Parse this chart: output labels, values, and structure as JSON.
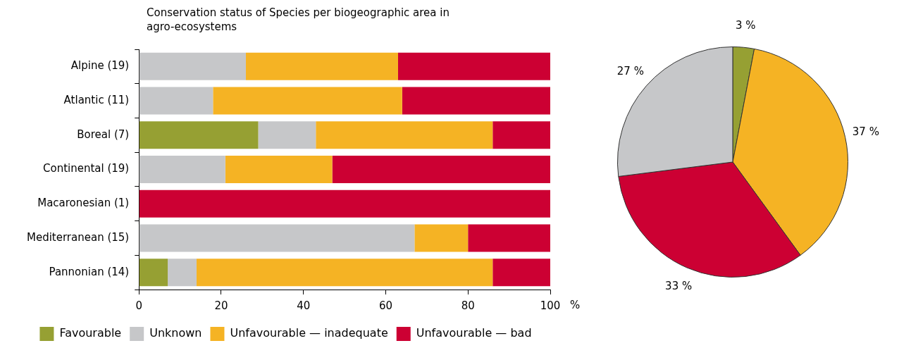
{
  "chart_data": [
    {
      "type": "bar",
      "orientation": "horizontal",
      "stacked": true,
      "title": "Conservation status of Species per biogeographic area in agro-ecosystems",
      "xlabel": "%",
      "legend": "bottom",
      "categories": [
        "Alpine (19)",
        "Atlantic (11)",
        "Boreal (7)",
        "Continental (19)",
        "Macaronesian (1)",
        "Mediterranean (15)",
        "Pannonian (14)"
      ],
      "xlim": [
        0,
        100
      ],
      "xticks": [
        0,
        20,
        40,
        60,
        80,
        100
      ],
      "series": [
        {
          "name": "Favourable",
          "color": "#96a033",
          "values": [
            0,
            0,
            29,
            0,
            0,
            0,
            7
          ]
        },
        {
          "name": "Unknown",
          "color": "#c6c7c9",
          "values": [
            26,
            18,
            14,
            21,
            0,
            67,
            7
          ]
        },
        {
          "name": "Unfavourable — inadequate",
          "color": "#f5b324",
          "values": [
            37,
            46,
            43,
            26,
            0,
            13,
            72
          ]
        },
        {
          "name": "Unfavourable — bad",
          "color": "#cc0033",
          "values": [
            37,
            36,
            14,
            53,
            100,
            20,
            14
          ]
        }
      ]
    },
    {
      "type": "pie",
      "categories": [
        null,
        null,
        null,
        null
      ],
      "values": [
        3,
        37,
        33,
        27
      ],
      "colors": [
        "#96a033",
        "#f5b324",
        "#cc0033",
        "#c6c7c9"
      ],
      "value_labels": [
        "3 %",
        "37 %",
        "33 %",
        "27 %"
      ]
    }
  ]
}
